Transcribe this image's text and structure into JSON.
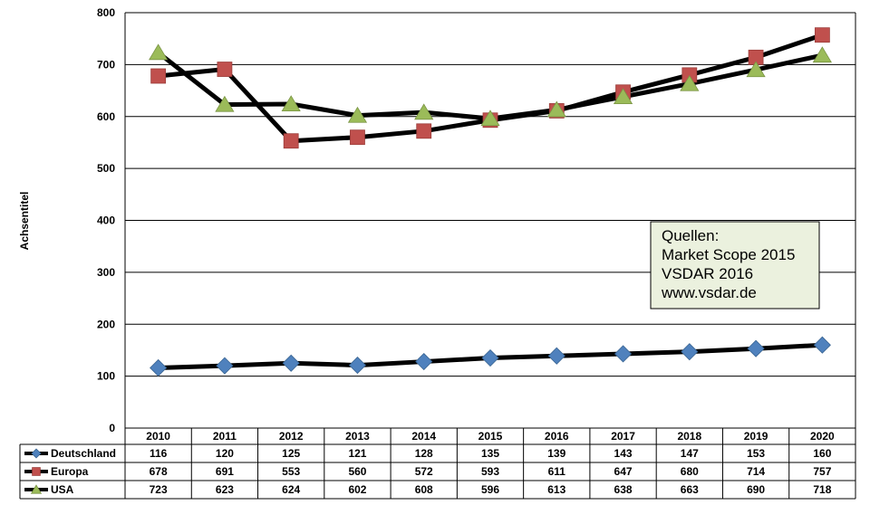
{
  "chart_data": {
    "type": "line",
    "categories": [
      "2010",
      "2011",
      "2012",
      "2013",
      "2014",
      "2015",
      "2016",
      "2017",
      "2018",
      "2019",
      "2020"
    ],
    "series": [
      {
        "name": "Deutschland",
        "marker": "diamond",
        "color": "#4f81bd",
        "values": [
          116,
          120,
          125,
          121,
          128,
          135,
          139,
          143,
          147,
          153,
          160
        ]
      },
      {
        "name": "Europa",
        "marker": "square",
        "color": "#c0504d",
        "values": [
          678,
          691,
          553,
          560,
          572,
          593,
          611,
          647,
          680,
          714,
          757
        ]
      },
      {
        "name": "USA",
        "marker": "triangle",
        "color": "#9bbb59",
        "values": [
          723,
          623,
          624,
          602,
          608,
          596,
          613,
          638,
          663,
          690,
          718
        ]
      }
    ],
    "ylabel": "Achsentitel",
    "ylim": [
      0,
      800
    ],
    "yticks": [
      "0",
      "100",
      "200",
      "300",
      "400",
      "500",
      "600",
      "700",
      "800"
    ],
    "grid": true,
    "legend": "data-table",
    "line_color": "#000000",
    "annotation": {
      "lines": [
        "Quellen:",
        "Market Scope 2015",
        "VSDAR 2016",
        "www.vsdar.de"
      ],
      "background": "#ebf1de"
    }
  }
}
